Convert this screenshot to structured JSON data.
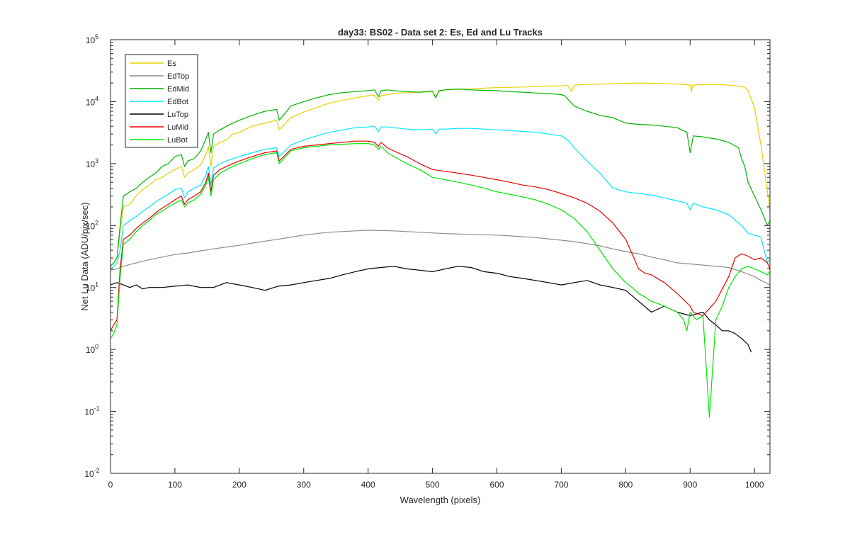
{
  "chart_data": {
    "type": "line",
    "title": "day33: BS02 - Data set 2: Es, Ed and Lu Tracks",
    "xlabel": "Wavelength (pixels)",
    "ylabel": "Net Lu Data (ADU/pix/sec)",
    "xlim": [
      0,
      1024
    ],
    "ylim": [
      0.01,
      100000
    ],
    "yscale": "log",
    "xticks": [
      0,
      100,
      200,
      300,
      400,
      500,
      600,
      700,
      800,
      900,
      1000
    ],
    "xtick_labels": [
      "0",
      "100",
      "200",
      "300",
      "400",
      "500",
      "600",
      "700",
      "800",
      "900",
      "1000"
    ],
    "yticks": [
      {
        "value": 0.01,
        "base": "10",
        "exp": "-2"
      },
      {
        "value": 0.1,
        "base": "10",
        "exp": "-1"
      },
      {
        "value": 1,
        "base": "10",
        "exp": "0"
      },
      {
        "value": 10,
        "base": "10",
        "exp": "1"
      },
      {
        "value": 100,
        "base": "10",
        "exp": "2"
      },
      {
        "value": 1000,
        "base": "10",
        "exp": "3"
      },
      {
        "value": 10000,
        "base": "10",
        "exp": "4"
      },
      {
        "value": 100000,
        "base": "10",
        "exp": "5"
      }
    ],
    "grid": false,
    "legend_position": "top-left",
    "series": [
      {
        "name": "Es",
        "color": "#e6d200",
        "x": [
          0,
          5,
          10,
          15,
          20,
          30,
          40,
          50,
          60,
          70,
          80,
          90,
          100,
          110,
          115,
          120,
          130,
          140,
          148,
          152,
          156,
          160,
          170,
          180,
          190,
          200,
          220,
          240,
          258,
          262,
          280,
          300,
          320,
          340,
          360,
          380,
          400,
          410,
          416,
          420,
          430,
          440,
          460,
          480,
          500,
          505,
          510,
          520,
          540,
          560,
          580,
          600,
          620,
          640,
          660,
          680,
          700,
          710,
          716,
          720,
          740,
          760,
          780,
          800,
          820,
          840,
          860,
          880,
          900,
          902,
          904,
          920,
          940,
          960,
          970,
          980,
          985,
          990,
          1000,
          1010,
          1020,
          1024
        ],
        "y": [
          22,
          25,
          30,
          80,
          200,
          220,
          300,
          380,
          450,
          550,
          600,
          700,
          800,
          900,
          600,
          700,
          800,
          950,
          1400,
          1900,
          900,
          1900,
          2200,
          2400,
          3000,
          3200,
          4000,
          4500,
          5000,
          3500,
          5500,
          6800,
          8000,
          9500,
          10500,
          11500,
          12500,
          12800,
          10500,
          12500,
          13000,
          13500,
          14000,
          14200,
          14500,
          12000,
          14500,
          15500,
          15800,
          16000,
          16500,
          16800,
          17000,
          17200,
          17500,
          17800,
          18000,
          18200,
          14500,
          18500,
          19000,
          19200,
          19500,
          19800,
          20000,
          19800,
          19500,
          19200,
          18500,
          14500,
          18500,
          18800,
          19000,
          18500,
          18000,
          17500,
          17000,
          15000,
          8000,
          2000,
          350,
          170
        ]
      },
      {
        "name": "EdTop",
        "color": "#8c8c8c",
        "x": [
          0,
          10,
          20,
          40,
          60,
          80,
          100,
          120,
          140,
          160,
          180,
          200,
          220,
          240,
          260,
          280,
          300,
          320,
          340,
          360,
          380,
          400,
          420,
          440,
          460,
          480,
          500,
          520,
          540,
          560,
          580,
          600,
          620,
          640,
          660,
          680,
          700,
          720,
          740,
          760,
          780,
          800,
          820,
          840,
          860,
          880,
          900,
          920,
          940,
          960,
          980,
          1000,
          1010,
          1024
        ],
        "y": [
          19,
          20,
          22,
          25,
          28,
          31,
          34,
          36,
          39,
          42,
          45,
          48,
          52,
          56,
          60,
          65,
          70,
          74,
          78,
          80,
          82,
          84,
          83,
          82,
          80,
          78,
          76,
          74,
          73,
          72,
          71,
          70,
          68,
          66,
          64,
          61,
          58,
          55,
          51,
          47,
          42,
          38,
          35,
          31,
          28,
          25,
          24,
          23,
          22,
          21,
          18,
          15,
          13,
          11
        ]
      },
      {
        "name": "EdMid",
        "color": "#00b400",
        "x": [
          0,
          5,
          10,
          15,
          20,
          30,
          40,
          50,
          60,
          70,
          80,
          90,
          100,
          110,
          115,
          120,
          130,
          140,
          148,
          152,
          156,
          160,
          170,
          180,
          190,
          200,
          220,
          240,
          258,
          262,
          280,
          300,
          320,
          340,
          360,
          380,
          400,
          410,
          416,
          420,
          430,
          440,
          460,
          480,
          500,
          505,
          510,
          520,
          540,
          560,
          580,
          600,
          620,
          640,
          660,
          680,
          700,
          705,
          710,
          720,
          740,
          760,
          780,
          800,
          820,
          840,
          860,
          880,
          895,
          900,
          905,
          920,
          940,
          960,
          975,
          980,
          985,
          990,
          1000,
          1010,
          1020,
          1024
        ],
        "y": [
          22,
          25,
          30,
          100,
          300,
          350,
          400,
          500,
          600,
          700,
          900,
          1000,
          1300,
          1400,
          900,
          1100,
          1200,
          1600,
          2500,
          3200,
          1500,
          3000,
          3500,
          4000,
          4500,
          5000,
          6000,
          7000,
          7500,
          5000,
          8500,
          10000,
          11500,
          13000,
          14000,
          14500,
          15000,
          15500,
          12000,
          15000,
          15500,
          15000,
          14500,
          14200,
          14800,
          11500,
          15000,
          15500,
          16000,
          15500,
          15200,
          15000,
          14500,
          14200,
          13800,
          13500,
          13000,
          12500,
          11000,
          8500,
          7000,
          6000,
          5500,
          4500,
          4300,
          4200,
          4000,
          3800,
          3200,
          1500,
          2800,
          2700,
          2500,
          2200,
          1800,
          1200,
          900,
          500,
          300,
          180,
          100,
          120
        ]
      },
      {
        "name": "EdBot",
        "color": "#00e6ff",
        "x": [
          0,
          5,
          10,
          15,
          20,
          30,
          40,
          50,
          60,
          70,
          80,
          90,
          100,
          110,
          115,
          120,
          130,
          140,
          148,
          152,
          156,
          160,
          170,
          180,
          190,
          200,
          220,
          240,
          258,
          262,
          280,
          300,
          320,
          340,
          360,
          380,
          400,
          410,
          416,
          420,
          430,
          440,
          460,
          480,
          500,
          505,
          510,
          520,
          540,
          560,
          580,
          600,
          620,
          640,
          660,
          680,
          700,
          710,
          720,
          740,
          760,
          780,
          800,
          820,
          840,
          860,
          880,
          895,
          900,
          905,
          920,
          940,
          960,
          980,
          990,
          1000,
          1010,
          1020,
          1024
        ],
        "y": [
          20,
          22,
          25,
          40,
          100,
          120,
          140,
          170,
          200,
          240,
          280,
          320,
          380,
          400,
          280,
          350,
          400,
          450,
          650,
          900,
          450,
          850,
          1000,
          1100,
          1200,
          1300,
          1500,
          1700,
          1800,
          1300,
          2000,
          2400,
          2800,
          3200,
          3500,
          3800,
          3900,
          4000,
          3300,
          3900,
          3900,
          3800,
          3600,
          3500,
          3600,
          3000,
          3600,
          3600,
          3700,
          3700,
          3600,
          3500,
          3400,
          3300,
          3200,
          3000,
          2800,
          2400,
          1800,
          1100,
          700,
          400,
          350,
          330,
          310,
          280,
          250,
          230,
          180,
          230,
          200,
          180,
          150,
          100,
          75,
          70,
          65,
          25,
          28
        ]
      },
      {
        "name": "LuTop",
        "color": "#000000",
        "x": [
          0,
          5,
          10,
          20,
          30,
          40,
          50,
          60,
          80,
          100,
          120,
          140,
          160,
          180,
          200,
          220,
          240,
          260,
          280,
          300,
          320,
          340,
          360,
          380,
          400,
          420,
          440,
          460,
          480,
          500,
          520,
          540,
          560,
          580,
          600,
          620,
          640,
          660,
          680,
          700,
          720,
          740,
          760,
          780,
          800,
          820,
          840,
          860,
          880,
          900,
          920,
          930,
          940,
          950,
          960,
          970,
          980,
          990,
          995
        ],
        "y": [
          11,
          11.5,
          12,
          11,
          10,
          11,
          9.5,
          10,
          10,
          10.5,
          11,
          10,
          10,
          12,
          11,
          10,
          9,
          10.5,
          11,
          12,
          13,
          14,
          16,
          18,
          20,
          21,
          22,
          20,
          19,
          18,
          20,
          22,
          21,
          18,
          17,
          15,
          14,
          13,
          12,
          11,
          12,
          13,
          11,
          10,
          9,
          6,
          4,
          5,
          4,
          3.5,
          4,
          3,
          2.5,
          2,
          2,
          1.8,
          1.5,
          1.2,
          0.9
        ]
      },
      {
        "name": "LuMid",
        "color": "#e60000",
        "x": [
          0,
          5,
          10,
          15,
          20,
          30,
          40,
          50,
          60,
          70,
          80,
          90,
          100,
          110,
          115,
          120,
          130,
          140,
          148,
          152,
          156,
          160,
          170,
          180,
          190,
          200,
          220,
          240,
          258,
          262,
          280,
          300,
          320,
          340,
          360,
          380,
          400,
          410,
          416,
          420,
          430,
          440,
          460,
          480,
          500,
          520,
          540,
          560,
          580,
          600,
          620,
          640,
          660,
          680,
          700,
          720,
          740,
          760,
          780,
          800,
          810,
          820,
          830,
          840,
          860,
          880,
          900,
          905,
          920,
          940,
          960,
          970,
          980,
          990,
          1000,
          1010,
          1020,
          1024
        ],
        "y": [
          2,
          2.5,
          3,
          20,
          60,
          70,
          90,
          110,
          130,
          160,
          190,
          220,
          260,
          300,
          220,
          260,
          300,
          350,
          500,
          700,
          350,
          650,
          800,
          900,
          1000,
          1100,
          1300,
          1500,
          1600,
          1100,
          1700,
          1900,
          2000,
          2100,
          2200,
          2300,
          2300,
          2200,
          1900,
          2200,
          1800,
          1600,
          1300,
          1000,
          800,
          750,
          700,
          650,
          600,
          550,
          500,
          450,
          420,
          380,
          330,
          280,
          230,
          170,
          110,
          60,
          35,
          20,
          17,
          16,
          12,
          8,
          5,
          4,
          3.5,
          6,
          15,
          30,
          35,
          32,
          28,
          30,
          25,
          20
        ]
      },
      {
        "name": "LuBot",
        "color": "#00e600",
        "x": [
          0,
          5,
          10,
          15,
          20,
          30,
          40,
          50,
          60,
          70,
          80,
          90,
          100,
          110,
          115,
          120,
          130,
          140,
          148,
          152,
          156,
          160,
          170,
          180,
          190,
          200,
          220,
          240,
          258,
          262,
          280,
          300,
          320,
          340,
          360,
          380,
          400,
          410,
          416,
          420,
          430,
          440,
          460,
          480,
          500,
          520,
          540,
          560,
          580,
          600,
          620,
          640,
          660,
          680,
          700,
          720,
          740,
          760,
          780,
          800,
          810,
          820,
          830,
          840,
          850,
          860,
          880,
          890,
          895,
          900,
          910,
          920,
          930,
          940,
          950,
          960,
          970,
          980,
          990,
          1000,
          1010,
          1020,
          1024
        ],
        "y": [
          1.5,
          1.8,
          2.5,
          15,
          50,
          60,
          80,
          100,
          120,
          150,
          170,
          200,
          230,
          260,
          200,
          230,
          260,
          320,
          450,
          600,
          300,
          550,
          700,
          800,
          900,
          1000,
          1200,
          1400,
          1500,
          1000,
          1600,
          1800,
          1900,
          2000,
          2050,
          2100,
          2100,
          2000,
          1700,
          1900,
          1500,
          1300,
          1000,
          800,
          600,
          550,
          500,
          450,
          400,
          350,
          320,
          290,
          260,
          220,
          180,
          130,
          80,
          40,
          20,
          12,
          10,
          8,
          7,
          6,
          5.5,
          5,
          4,
          3,
          2,
          4,
          3,
          3.5,
          0.08,
          3,
          5,
          10,
          15,
          20,
          22,
          20,
          18,
          16,
          18
        ]
      }
    ]
  }
}
